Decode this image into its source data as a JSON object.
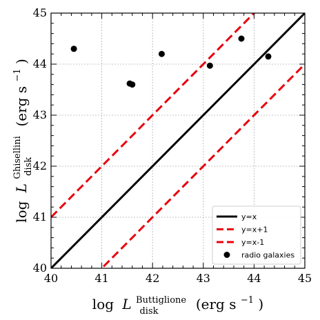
{
  "chart_data": {
    "type": "scatter",
    "xlim": [
      40,
      45
    ],
    "ylim": [
      40,
      45
    ],
    "x_ticks": [
      40,
      41,
      42,
      43,
      44,
      45
    ],
    "y_ticks": [
      40,
      41,
      42,
      43,
      44,
      45
    ],
    "x_tick_labels": [
      "40",
      "41",
      "42",
      "43",
      "44",
      "45"
    ],
    "y_tick_labels": [
      "40",
      "41",
      "42",
      "43",
      "44",
      "45"
    ],
    "xlabel": {
      "prefix": "log",
      "symbol": "L",
      "superscript": "Buttiglione",
      "subscript": "disk",
      "units": "(erg s",
      "units_exp": "−1",
      "units_close": ")"
    },
    "ylabel": {
      "prefix": "log",
      "symbol": "L",
      "superscript": "Ghisellini",
      "subscript": "disk",
      "units": "(erg s",
      "units_exp": "−1",
      "units_close": ")"
    },
    "grid": true,
    "legend_position": "bottom-right",
    "lines": [
      {
        "name": "y=x",
        "offset": 0,
        "color": "#000000",
        "style": "solid"
      },
      {
        "name": "y=x+1",
        "offset": 1,
        "color": "#e8000b",
        "style": "dashed"
      },
      {
        "name": "y=x-1",
        "offset": -1,
        "color": "#e8000b",
        "style": "dashed"
      }
    ],
    "series": [
      {
        "name": "radio galaxies",
        "color": "#000000",
        "points": [
          {
            "x": 40.45,
            "y": 44.3
          },
          {
            "x": 41.55,
            "y": 43.62
          },
          {
            "x": 41.6,
            "y": 43.6
          },
          {
            "x": 42.18,
            "y": 44.2
          },
          {
            "x": 43.13,
            "y": 43.97
          },
          {
            "x": 43.75,
            "y": 44.5
          },
          {
            "x": 44.28,
            "y": 44.15
          }
        ]
      }
    ]
  }
}
